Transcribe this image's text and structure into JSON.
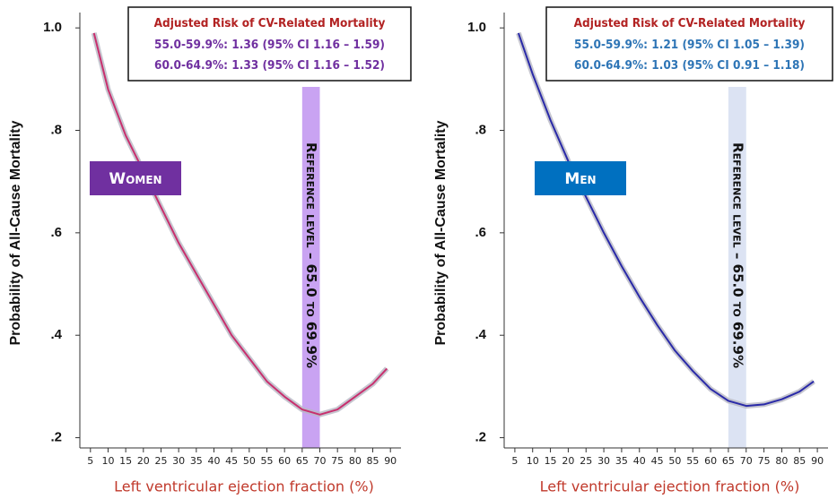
{
  "chart_data": [
    {
      "type": "line",
      "panel_label": "Women",
      "annotation_title": "Adjusted Risk of CV-Related Mortality",
      "annotation_lines": [
        "55.0-59.9%: 1.36 (95% CI 1.16 – 1.59)",
        "60.0-64.9%: 1.33 (95% CI 1.16 – 1.52)"
      ],
      "annotation_color": "#7030a0",
      "annotation_title_color": "#b22222",
      "panel_label_color": "#7030a0",
      "reference_label": "Reference level – 65.0 to 69.9%",
      "reference_band": [
        65,
        70
      ],
      "reference_color": "#c9a3f2",
      "x_label": "Left ventricular ejection fraction (%)",
      "y_label": "Probability of All-Cause Mortality",
      "x": [
        6,
        10,
        15,
        20,
        25,
        30,
        35,
        40,
        45,
        50,
        55,
        60,
        65,
        70,
        75,
        80,
        85,
        89
      ],
      "series": [
        {
          "name": "Women",
          "color": "#c8306e",
          "values": [
            0.99,
            0.88,
            0.79,
            0.72,
            0.65,
            0.58,
            0.52,
            0.46,
            0.4,
            0.355,
            0.31,
            0.28,
            0.255,
            0.245,
            0.255,
            0.28,
            0.305,
            0.335
          ]
        }
      ],
      "xlim": [
        2,
        93
      ],
      "xticks": [
        5,
        10,
        15,
        20,
        25,
        30,
        35,
        40,
        45,
        50,
        55,
        60,
        65,
        70,
        75,
        80,
        85,
        90
      ],
      "ylim": [
        0.18,
        1.03
      ],
      "yticks": [
        {
          "value": 0.2,
          "label": ".2"
        },
        {
          "value": 0.4,
          "label": ".4"
        },
        {
          "value": 0.6,
          "label": ".6"
        },
        {
          "value": 0.8,
          "label": ".8"
        },
        {
          "value": 1.0,
          "label": "1.0"
        }
      ]
    },
    {
      "type": "line",
      "panel_label": "Men",
      "annotation_title": "Adjusted Risk of CV-Related Mortality",
      "annotation_lines": [
        "55.0-59.9%: 1.21 (95% CI 1.05 – 1.39)",
        "60.0-64.9%: 1.03 (95% CI 0.91 – 1.18)"
      ],
      "annotation_color": "#2e75b6",
      "annotation_title_color": "#b22222",
      "panel_label_color": "#0070c0",
      "reference_label": "Reference level – 65.0 to 69.9%",
      "reference_band": [
        65,
        70
      ],
      "reference_color": "#dce3f3",
      "x_label": "Left ventricular ejection fraction (%)",
      "y_label": "Probability of All-Cause Mortality",
      "x": [
        6,
        10,
        15,
        20,
        25,
        30,
        35,
        40,
        45,
        50,
        55,
        60,
        65,
        70,
        75,
        80,
        85,
        89
      ],
      "series": [
        {
          "name": "Men",
          "color": "#2a2aa8",
          "values": [
            0.99,
            0.91,
            0.82,
            0.74,
            0.67,
            0.6,
            0.535,
            0.475,
            0.42,
            0.37,
            0.33,
            0.295,
            0.272,
            0.262,
            0.265,
            0.275,
            0.29,
            0.31
          ]
        }
      ],
      "xlim": [
        2,
        93
      ],
      "xticks": [
        5,
        10,
        15,
        20,
        25,
        30,
        35,
        40,
        45,
        50,
        55,
        60,
        65,
        70,
        75,
        80,
        85,
        90
      ],
      "ylim": [
        0.18,
        1.03
      ],
      "yticks": [
        {
          "value": 0.2,
          "label": ".2"
        },
        {
          "value": 0.4,
          "label": ".4"
        },
        {
          "value": 0.6,
          "label": ".6"
        },
        {
          "value": 0.8,
          "label": ".8"
        },
        {
          "value": 1.0,
          "label": "1.0"
        }
      ]
    }
  ]
}
